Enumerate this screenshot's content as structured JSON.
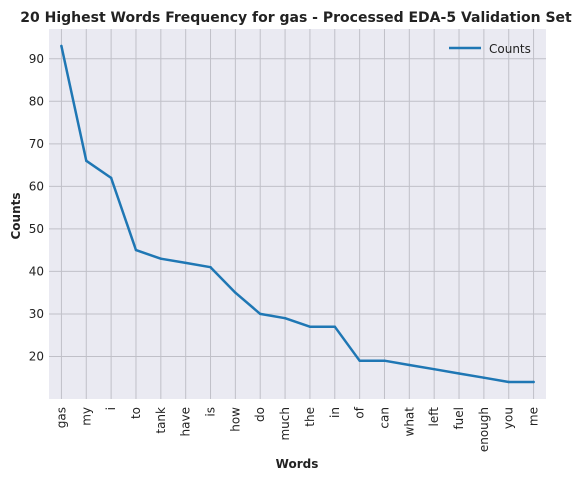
{
  "chart_data": {
    "type": "line",
    "title": "20 Highest Words Frequency for gas - Processed EDA-5 Validation Set",
    "xlabel": "Words",
    "ylabel": "Counts",
    "categories": [
      "gas",
      "my",
      "i",
      "to",
      "tank",
      "have",
      "is",
      "how",
      "do",
      "much",
      "the",
      "in",
      "of",
      "can",
      "what",
      "left",
      "fuel",
      "enough",
      "you",
      "me"
    ],
    "series": [
      {
        "name": "Counts",
        "values": [
          93,
          66,
          62,
          45,
          43,
          42,
          41,
          35,
          30,
          29,
          27,
          27,
          19,
          19,
          18,
          17,
          16,
          15,
          14,
          14
        ]
      }
    ],
    "ylim": [
      10,
      97
    ],
    "yticks": [
      20,
      30,
      40,
      50,
      60,
      70,
      80,
      90
    ],
    "grid": true,
    "legend_position": "top-right",
    "colors": {
      "line": "#1f77b4",
      "plot_background": "#eaeaf2",
      "grid": "#c0c0c8"
    }
  }
}
